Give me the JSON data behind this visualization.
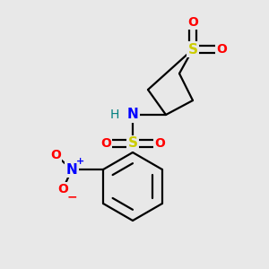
{
  "background_color": "#e8e8e8",
  "figsize": [
    3.0,
    3.0
  ],
  "dpi": 100,
  "colors": {
    "S": "#cccc00",
    "O": "#ff0000",
    "N": "#0000ff",
    "H": "#008080",
    "C": "#000000",
    "bond": "#000000"
  }
}
